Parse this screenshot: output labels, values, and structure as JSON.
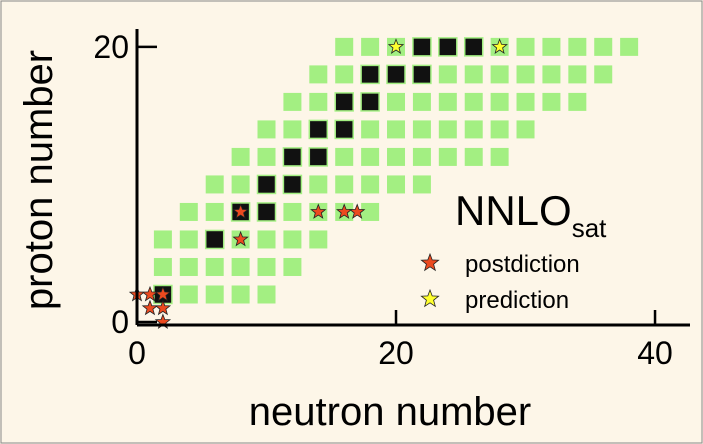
{
  "chart_data": {
    "type": "scatter",
    "x_label": "neutron number",
    "y_label": "proton number",
    "legend_title": "NNLO",
    "legend_title_sub": "sat",
    "xlim": [
      0,
      42.7
    ],
    "ylim": [
      0,
      21.3
    ],
    "xticks": [
      0,
      20,
      40
    ],
    "yticks": [
      0,
      20
    ],
    "series": [
      {
        "marker": "square",
        "color": "#a3ef82",
        "x": [
          16,
          18,
          20,
          22,
          24,
          26,
          28,
          30,
          32,
          34,
          36,
          38,
          14,
          16,
          18,
          20,
          22,
          24,
          26,
          28,
          30,
          32,
          34,
          36,
          12,
          14,
          16,
          18,
          20,
          22,
          24,
          26,
          28,
          30,
          32,
          34,
          10,
          12,
          14,
          16,
          18,
          20,
          22,
          24,
          26,
          28,
          30,
          8,
          10,
          12,
          14,
          16,
          18,
          20,
          22,
          24,
          26,
          28,
          6,
          8,
          10,
          12,
          14,
          16,
          18,
          20,
          22,
          4,
          6,
          8,
          10,
          12,
          14,
          16,
          18,
          2,
          4,
          6,
          8,
          10,
          12,
          14,
          2,
          4,
          6,
          8,
          10,
          12,
          2,
          4,
          6,
          8,
          10
        ],
        "values": [
          20,
          20,
          20,
          20,
          20,
          20,
          20,
          20,
          20,
          20,
          20,
          20,
          18,
          18,
          18,
          18,
          18,
          18,
          18,
          18,
          18,
          18,
          18,
          18,
          16,
          16,
          16,
          16,
          16,
          16,
          16,
          16,
          16,
          16,
          16,
          16,
          14,
          14,
          14,
          14,
          14,
          14,
          14,
          14,
          14,
          14,
          14,
          12,
          12,
          12,
          12,
          12,
          12,
          12,
          12,
          12,
          12,
          12,
          10,
          10,
          10,
          10,
          10,
          10,
          10,
          10,
          10,
          8,
          8,
          8,
          8,
          8,
          8,
          8,
          8,
          6,
          6,
          6,
          6,
          6,
          6,
          6,
          4,
          4,
          4,
          4,
          4,
          4,
          2,
          2,
          2,
          2,
          2
        ]
      },
      {
        "marker": "square",
        "color": "#111111",
        "x": [
          2,
          6,
          8,
          10,
          10,
          12,
          12,
          14,
          14,
          16,
          16,
          18,
          18,
          20,
          22,
          22,
          24,
          26
        ],
        "values": [
          2,
          6,
          8,
          8,
          10,
          10,
          12,
          12,
          14,
          14,
          16,
          16,
          18,
          18,
          18,
          20,
          20,
          20
        ]
      },
      {
        "name": "postdiction",
        "marker": "star",
        "color": "#ec4a1f",
        "x": [
          0,
          1,
          2,
          1,
          2,
          2,
          8,
          8,
          14,
          16,
          17
        ],
        "values": [
          2,
          2,
          2,
          1,
          1,
          0,
          8,
          6,
          8,
          8,
          8
        ]
      },
      {
        "name": "prediction",
        "marker": "star",
        "color": "#ffff2e",
        "x": [
          20,
          28
        ],
        "values": [
          20,
          20
        ]
      }
    ]
  }
}
